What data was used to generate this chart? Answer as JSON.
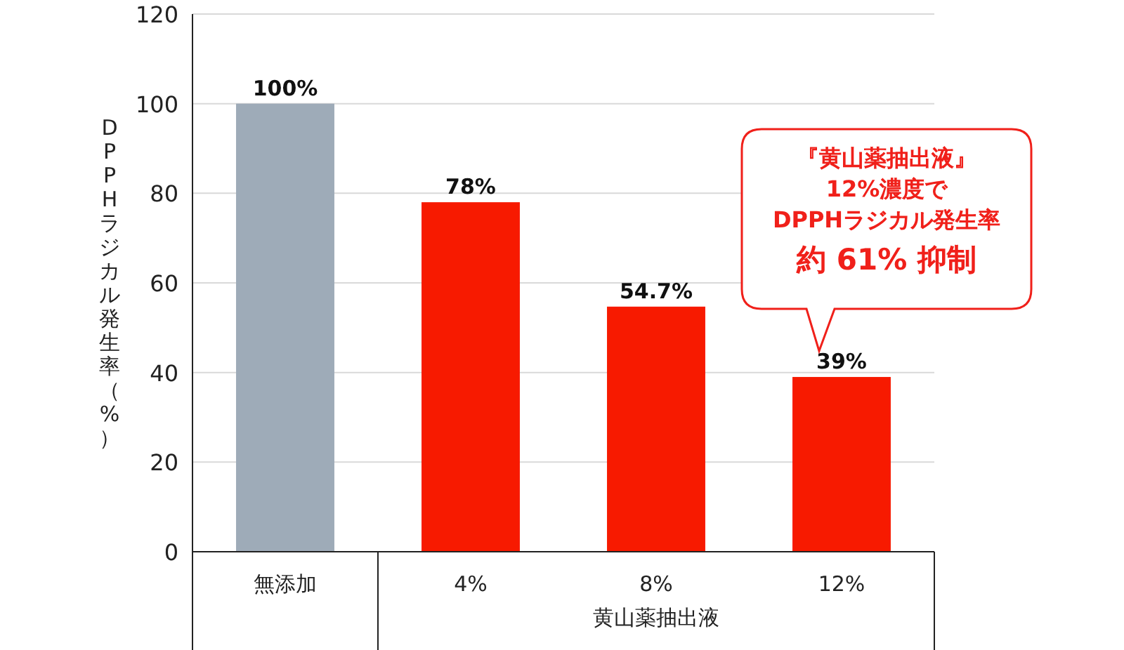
{
  "chart_data": {
    "type": "bar",
    "categories": [
      "無添加",
      "4%",
      "8%",
      "12%"
    ],
    "values": [
      100,
      78,
      54.7,
      39
    ],
    "colors": [
      "#9eabb8",
      "#f71a00",
      "#f71a00",
      "#f71a00"
    ],
    "value_labels": [
      "100%",
      "78%",
      "54.7%",
      "39%"
    ],
    "ylabel": "DPPHラジカル発生率（%）",
    "xlabel": "黄山薬抽出液",
    "ylim": [
      0,
      120
    ],
    "yticks": [
      0,
      20,
      40,
      60,
      80,
      100,
      120
    ],
    "grid": "y",
    "annotations": [
      "『黄山薬抽出液』",
      "12%濃度で",
      "DPPHラジカル発生率",
      "約 61% 抑制"
    ]
  }
}
